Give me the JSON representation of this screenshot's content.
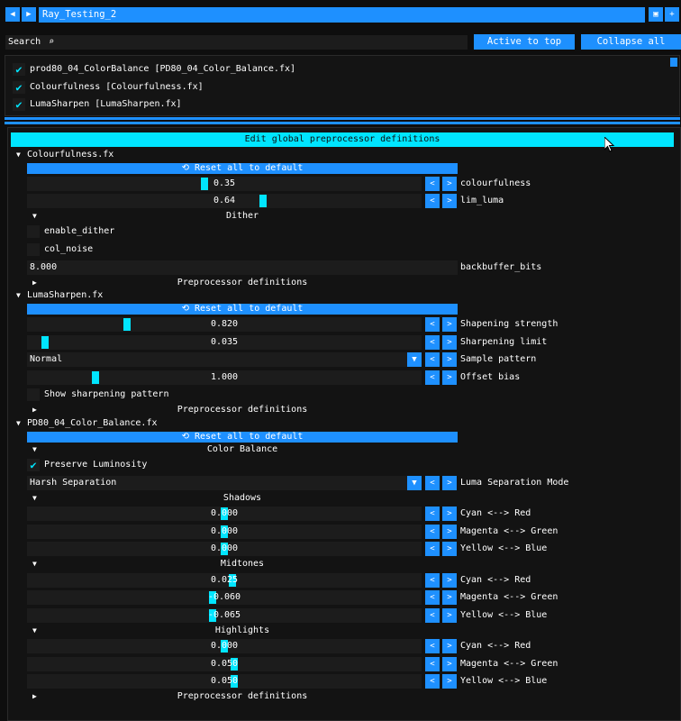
{
  "topbar": {
    "prev_icon": "caret-left",
    "next_icon": "caret-right",
    "preset_name": "Ray_Testing_2",
    "save_icon": "save",
    "add_icon": "plus"
  },
  "search": {
    "label": "Search",
    "icon": "search"
  },
  "buttons": {
    "active_to_top": "Active to top",
    "collapse_all": "Collapse all"
  },
  "effects": [
    {
      "label": "prod80_04_ColorBalance [PD80_04_Color_Balance.fx]",
      "checked": true
    },
    {
      "label": "Colourfulness [Colourfulness.fx]",
      "checked": true
    },
    {
      "label": "LumaSharpen [LumaSharpen.fx]",
      "checked": true
    }
  ],
  "global_preprocessor": "Edit global preprocessor definitions",
  "sections": {
    "colourfulness": {
      "title": "Colourfulness.fx",
      "reset": "Reset all to default",
      "colourfulness": {
        "value": "0.35",
        "label": "colourfulness"
      },
      "lim_luma": {
        "value": "0.64",
        "label": "lim_luma"
      },
      "dither": "Dither",
      "enable_dither": "enable_dither",
      "col_noise": "col_noise",
      "backbuffer_bits": {
        "value": "8.000",
        "label": "backbuffer_bits"
      },
      "preprocessor": "Preprocessor definitions"
    },
    "lumasharpen": {
      "title": "LumaSharpen.fx",
      "reset": "Reset all to default",
      "strength": {
        "value": "0.820",
        "label": "Shapening strength"
      },
      "limit": {
        "value": "0.035",
        "label": "Sharpening limit"
      },
      "pattern": {
        "value": "Normal",
        "label": "Sample pattern"
      },
      "offset": {
        "value": "1.000",
        "label": "Offset bias"
      },
      "show_pattern": "Show sharpening pattern",
      "preprocessor": "Preprocessor definitions"
    },
    "colorbalance": {
      "title": "PD80_04_Color_Balance.fx",
      "reset": "Reset all to default",
      "group": "Color Balance",
      "preserve": "Preserve Luminosity",
      "mode": {
        "value": "Harsh Separation",
        "label": "Luma Separation Mode"
      },
      "shadows": {
        "title": "Shadows",
        "rows": [
          {
            "value": "0.000",
            "label": "Cyan <--> Red"
          },
          {
            "value": "0.000",
            "label": "Magenta <--> Green"
          },
          {
            "value": "0.000",
            "label": "Yellow <--> Blue"
          }
        ]
      },
      "midtones": {
        "title": "Midtones",
        "rows": [
          {
            "value": "0.025",
            "label": "Cyan <--> Red"
          },
          {
            "value": "-0.060",
            "label": "Magenta <--> Green"
          },
          {
            "value": "-0.065",
            "label": "Yellow <--> Blue"
          }
        ]
      },
      "highlights": {
        "title": "Highlights",
        "rows": [
          {
            "value": "0.000",
            "label": "Cyan <--> Red"
          },
          {
            "value": "0.050",
            "label": "Magenta <--> Green"
          },
          {
            "value": "0.050",
            "label": "Yellow <--> Blue"
          }
        ]
      },
      "preprocessor": "Preprocessor definitions"
    }
  },
  "colors": {
    "accent": "#1e90ff",
    "highlight": "#00e5ff",
    "background": "#0e0e0e"
  }
}
